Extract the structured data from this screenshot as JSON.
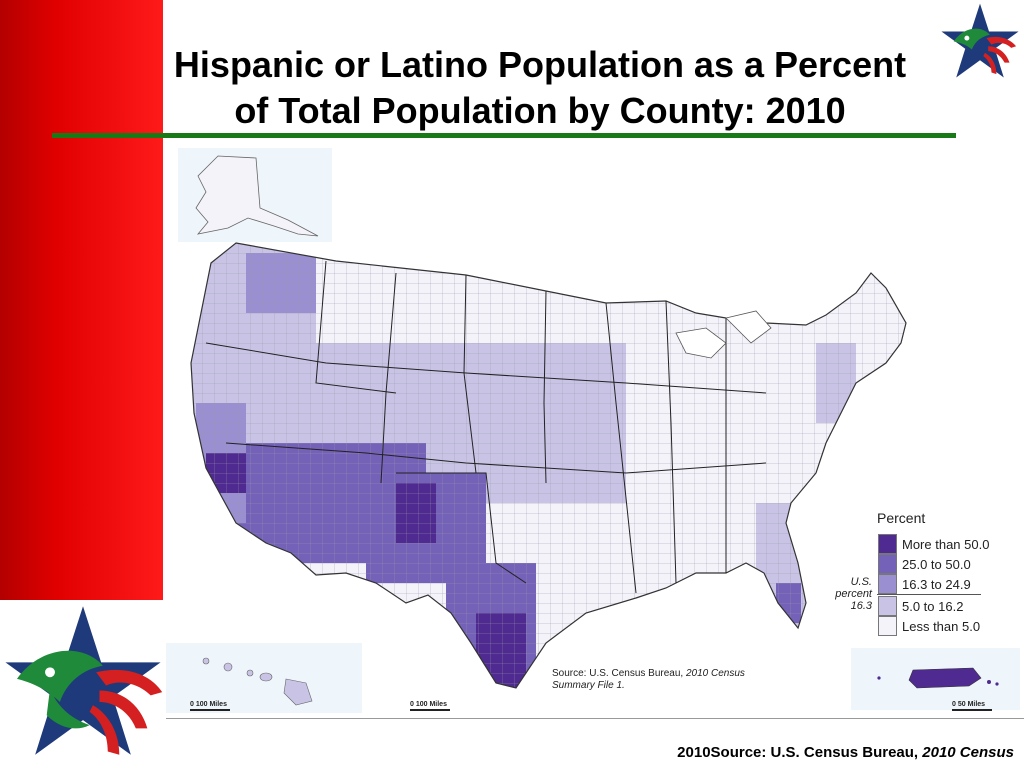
{
  "slide": {
    "title_line1": "Hispanic or Latino Population as a Percent",
    "title_line2": "of Total Population by County: 2010",
    "footer_prefix": "2010Source: U.S. Census Bureau, ",
    "footer_italic": "2010 Census"
  },
  "map": {
    "source_prefix": "Source:  U.S. Census Bureau, ",
    "source_italic1": "2010 Census",
    "source_italic2": "Summary File 1.",
    "us_percent_line1": "U.S.",
    "us_percent_line2": "percent",
    "us_percent_value": "16.3",
    "scale_hawaii": "0     100 Miles",
    "scale_mainland": "0     100 Miles",
    "scale_pr": "0     50 Miles",
    "legend": {
      "title": "Percent",
      "items": [
        {
          "label": "More than 50.0",
          "color": "#4f2b91"
        },
        {
          "label": "25.0 to 50.0",
          "color": "#7461b8"
        },
        {
          "label": "16.3 to 24.9",
          "color": "#9a8fd0"
        },
        {
          "label": "5.0 to 16.2",
          "color": "#c9c4e6"
        },
        {
          "label": "Less than 5.0",
          "color": "#f4f3fa"
        }
      ]
    }
  },
  "colors": {
    "red_band": "#e10000",
    "green_rule": "#177a17",
    "emblem_blue": "#1f3a7a",
    "emblem_red": "#d42020",
    "emblem_green": "#1f8a3a"
  }
}
